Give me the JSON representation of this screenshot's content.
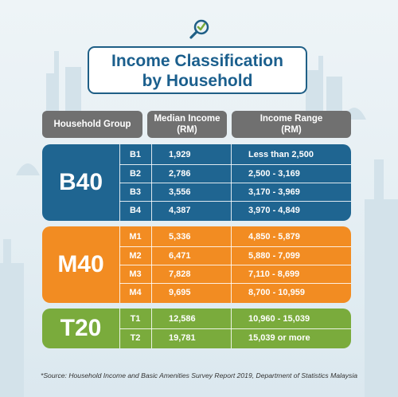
{
  "title": {
    "line1": "Income Classification",
    "line2": "by Household"
  },
  "headers": {
    "group": "Household Group",
    "median_line1": "Median Income",
    "median_line2": "(RM)",
    "range_line1": "Income Range",
    "range_line2": "(RM)"
  },
  "groups": [
    {
      "name": "B40",
      "color": "#1f6591",
      "rows": [
        {
          "code": "B1",
          "median": "1,929",
          "range": "Less than  2,500"
        },
        {
          "code": "B2",
          "median": "2,786",
          "range": "2,500 - 3,169"
        },
        {
          "code": "B3",
          "median": "3,556",
          "range": "3,170 - 3,969"
        },
        {
          "code": "B4",
          "median": "4,387",
          "range": "3,970 - 4,849"
        }
      ]
    },
    {
      "name": "M40",
      "color": "#f28c22",
      "rows": [
        {
          "code": "M1",
          "median": "5,336",
          "range": "4,850 - 5,879"
        },
        {
          "code": "M2",
          "median": "6,471",
          "range": "5,880 - 7,099"
        },
        {
          "code": "M3",
          "median": "7,828",
          "range": "7,110 - 8,699"
        },
        {
          "code": "M4",
          "median": "9,695",
          "range": "8,700 - 10,959"
        }
      ]
    },
    {
      "name": "T20",
      "color": "#7aab3c",
      "rows": [
        {
          "code": "T1",
          "median": "12,586",
          "range": "10,960 - 15,039"
        },
        {
          "code": "T2",
          "median": "19,781",
          "range": "15,039 or more"
        }
      ]
    }
  ],
  "source": "*Source:  Household Income and Basic Amenities Survey Report 2019, Department of Statistics Malaysia",
  "icons": {
    "logo": "magnifier-check-icon"
  }
}
